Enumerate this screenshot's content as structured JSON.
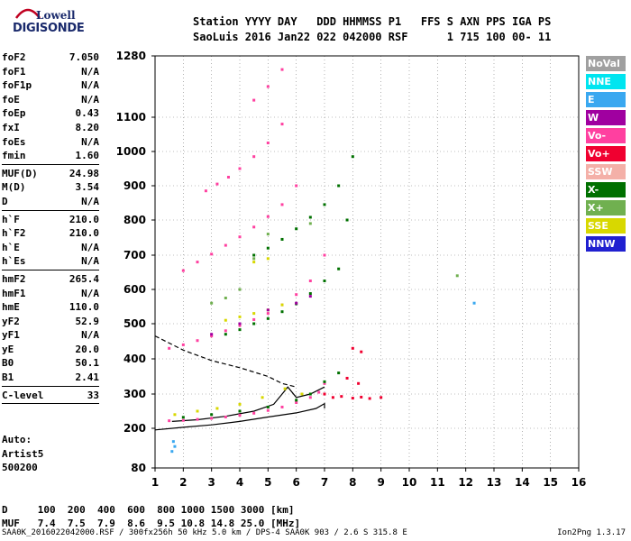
{
  "logo": {
    "line1": "Lowell",
    "line2": "DIGISONDE"
  },
  "header": {
    "line1": "Station YYYY DAY   DDD HHMMSS P1   FFS S AXN PPS IGA PS",
    "line2": "SaoLuis 2016 Jan22 022 042000 RSF      1 715 100 00- 11"
  },
  "params": [
    {
      "label": "foF2",
      "value": "7.050"
    },
    {
      "label": "foF1",
      "value": "N/A"
    },
    {
      "label": "foF1p",
      "value": "N/A"
    },
    {
      "label": "foE",
      "value": "N/A"
    },
    {
      "label": "foEp",
      "value": "0.43"
    },
    {
      "label": "fxI",
      "value": "8.20"
    },
    {
      "label": "foEs",
      "value": "N/A"
    },
    {
      "label": "fmin",
      "value": "1.60",
      "sep": true
    },
    {
      "label": "MUF(D)",
      "value": "24.98"
    },
    {
      "label": "M(D)",
      "value": "3.54"
    },
    {
      "label": "D",
      "value": "N/A",
      "sep": true
    },
    {
      "label": "h`F",
      "value": "210.0"
    },
    {
      "label": "h`F2",
      "value": "210.0"
    },
    {
      "label": "h`E",
      "value": "N/A"
    },
    {
      "label": "h`Es",
      "value": "N/A",
      "sep": true
    },
    {
      "label": "hmF2",
      "value": "265.4"
    },
    {
      "label": "hmF1",
      "value": "N/A"
    },
    {
      "label": "hmE",
      "value": "110.0"
    },
    {
      "label": "yF2",
      "value": "52.9"
    },
    {
      "label": "yF1",
      "value": "N/A"
    },
    {
      "label": "yE",
      "value": "20.0"
    },
    {
      "label": "B0",
      "value": "50.1"
    },
    {
      "label": "B1",
      "value": "2.41",
      "sep": true
    },
    {
      "label": "C-level",
      "value": "33",
      "sep": true
    }
  ],
  "auto": {
    "line1": "Auto:",
    "line2": "Artist5",
    "line3": "500200"
  },
  "legend": [
    {
      "label": "NoVal",
      "color": "#a0a0a0"
    },
    {
      "label": "NNE",
      "color": "#00e5f0"
    },
    {
      "label": "E",
      "color": "#3aa8f0"
    },
    {
      "label": "W",
      "color": "#a000a0"
    },
    {
      "label": "Vo-",
      "color": "#ff40a0"
    },
    {
      "label": "Vo+",
      "color": "#f00030"
    },
    {
      "label": "SSW",
      "color": "#f4b0a8"
    },
    {
      "label": "X-",
      "color": "#007000"
    },
    {
      "label": "X+",
      "color": "#70b050"
    },
    {
      "label": "SSE",
      "color": "#d8d800"
    },
    {
      "label": "NNW",
      "color": "#2020d0"
    }
  ],
  "footer": {
    "line1": "D     100  200  400  600  800 1000 1500 3000 [km]",
    "line2": "MUF   7.4  7.5  7.9  8.6  9.5 10.8 14.8 25.0 [MHz]"
  },
  "file": "SAA0K_2016022042000.RSF / 300fx256h 50 kHz 5.0 km / DPS-4 SAA0K 903 / 2.6 S 315.8 E",
  "version": "Ion2Png 1.3.17",
  "chart_data": {
    "type": "scatter",
    "title": "",
    "xlabel": "",
    "ylabel": "",
    "xlim": [
      1,
      16
    ],
    "ylim": [
      80,
      1280
    ],
    "x_ticks": [
      1,
      2,
      3,
      4,
      5,
      6,
      7,
      8,
      9,
      10,
      11,
      12,
      13,
      14,
      15,
      16
    ],
    "y_ticks": [
      80,
      200,
      300,
      400,
      500,
      600,
      700,
      800,
      900,
      1000,
      1100,
      1280
    ],
    "y_tick_labels": [
      "80",
      "200",
      "300",
      "400",
      "500",
      "600",
      "700",
      "800",
      "900",
      "1000",
      "1100",
      "1280"
    ],
    "grid": true,
    "series": [
      {
        "legend": "Vo-",
        "color": "#ff40a0",
        "points": [
          [
            1.5,
            222
          ],
          [
            2.0,
            223
          ],
          [
            2.5,
            226
          ],
          [
            3.0,
            229
          ],
          [
            3.5,
            233
          ],
          [
            4.0,
            238
          ],
          [
            4.5,
            244
          ],
          [
            5.0,
            252
          ],
          [
            5.5,
            262
          ],
          [
            6.0,
            275
          ],
          [
            6.5,
            290
          ],
          [
            6.8,
            305
          ],
          [
            7.0,
            330
          ],
          [
            1.5,
            430
          ],
          [
            2.0,
            440
          ],
          [
            2.5,
            452
          ],
          [
            3.0,
            465
          ],
          [
            3.5,
            480
          ],
          [
            4.0,
            495
          ],
          [
            4.5,
            512
          ],
          [
            5.0,
            530
          ],
          [
            5.5,
            555
          ],
          [
            6.0,
            585
          ],
          [
            6.5,
            625
          ],
          [
            7.0,
            700
          ],
          [
            2.0,
            655
          ],
          [
            2.5,
            680
          ],
          [
            3.0,
            703
          ],
          [
            3.5,
            728
          ],
          [
            4.0,
            752
          ],
          [
            4.5,
            780
          ],
          [
            5.0,
            810
          ],
          [
            5.5,
            845
          ],
          [
            6.0,
            900
          ],
          [
            2.8,
            885
          ],
          [
            3.2,
            905
          ],
          [
            3.6,
            925
          ],
          [
            4.0,
            950
          ],
          [
            4.5,
            985
          ],
          [
            5.0,
            1025
          ],
          [
            5.5,
            1080
          ],
          [
            4.5,
            1150
          ],
          [
            5.0,
            1190
          ],
          [
            5.5,
            1240
          ]
        ]
      },
      {
        "legend": "X-",
        "color": "#007000",
        "points": [
          [
            2.0,
            232
          ],
          [
            3.0,
            240
          ],
          [
            4.0,
            250
          ],
          [
            5.0,
            262
          ],
          [
            6.0,
            282
          ],
          [
            6.5,
            300
          ],
          [
            7.0,
            335
          ],
          [
            7.5,
            360
          ],
          [
            3.5,
            470
          ],
          [
            4.0,
            483
          ],
          [
            4.5,
            500
          ],
          [
            5.0,
            515
          ],
          [
            5.5,
            535
          ],
          [
            6.0,
            558
          ],
          [
            6.5,
            588
          ],
          [
            7.0,
            625
          ],
          [
            7.5,
            660
          ],
          [
            4.5,
            700
          ],
          [
            5.0,
            720
          ],
          [
            5.5,
            745
          ],
          [
            6.0,
            775
          ],
          [
            6.5,
            808
          ],
          [
            7.0,
            845
          ],
          [
            7.5,
            900
          ],
          [
            8.0,
            985
          ],
          [
            7.8,
            800
          ]
        ]
      },
      {
        "legend": "Vo+",
        "color": "#f00030",
        "points": [
          [
            7.0,
            300
          ],
          [
            7.3,
            290
          ],
          [
            7.6,
            293
          ],
          [
            8.0,
            288
          ],
          [
            8.3,
            291
          ],
          [
            8.6,
            287
          ],
          [
            9.0,
            290
          ],
          [
            7.8,
            345
          ],
          [
            8.2,
            330
          ],
          [
            8.0,
            430
          ],
          [
            8.3,
            420
          ]
        ]
      },
      {
        "legend": "SSE",
        "color": "#d8d800",
        "points": [
          [
            1.7,
            240
          ],
          [
            2.5,
            250
          ],
          [
            3.2,
            258
          ],
          [
            4.0,
            270
          ],
          [
            4.8,
            290
          ],
          [
            5.6,
            315
          ],
          [
            6.2,
            300
          ],
          [
            3.5,
            510
          ],
          [
            4.0,
            520
          ],
          [
            4.5,
            530
          ],
          [
            5.0,
            540
          ],
          [
            5.5,
            555
          ],
          [
            4.5,
            680
          ],
          [
            5.0,
            690
          ]
        ]
      },
      {
        "legend": "X+",
        "color": "#70b050",
        "points": [
          [
            3.0,
            560
          ],
          [
            3.5,
            575
          ],
          [
            4.0,
            600
          ],
          [
            4.5,
            690
          ],
          [
            5.0,
            760
          ],
          [
            6.5,
            790
          ],
          [
            11.7,
            640
          ]
        ]
      },
      {
        "legend": "E",
        "color": "#3aa8f0",
        "points": [
          [
            1.6,
            130
          ],
          [
            1.7,
            145
          ],
          [
            1.65,
            160
          ],
          [
            12.3,
            560
          ]
        ]
      },
      {
        "legend": "W",
        "color": "#a000a0",
        "points": [
          [
            3.0,
            470
          ],
          [
            4.0,
            500
          ],
          [
            5.0,
            540
          ],
          [
            6.0,
            560
          ],
          [
            6.5,
            580
          ]
        ]
      }
    ],
    "curves": [
      {
        "name": "profile",
        "style": "solid",
        "points": [
          [
            1,
            195
          ],
          [
            2,
            203
          ],
          [
            3,
            210
          ],
          [
            4,
            220
          ],
          [
            5,
            233
          ],
          [
            6,
            245
          ],
          [
            6.7,
            258
          ],
          [
            7,
            272
          ],
          [
            7,
            258
          ]
        ]
      },
      {
        "name": "virtual",
        "style": "solid",
        "points": [
          [
            1.6,
            220
          ],
          [
            2.5,
            225
          ],
          [
            3.5,
            235
          ],
          [
            4.5,
            250
          ],
          [
            5.2,
            270
          ],
          [
            5.5,
            300
          ],
          [
            5.7,
            320
          ],
          [
            6.0,
            290
          ],
          [
            6.5,
            300
          ],
          [
            7.0,
            320
          ]
        ]
      },
      {
        "name": "dashed",
        "style": "dashed",
        "points": [
          [
            1.0,
            465
          ],
          [
            2.0,
            425
          ],
          [
            3.0,
            395
          ],
          [
            4.0,
            375
          ],
          [
            5.0,
            350
          ],
          [
            5.5,
            330
          ],
          [
            6.0,
            320
          ]
        ]
      }
    ]
  }
}
